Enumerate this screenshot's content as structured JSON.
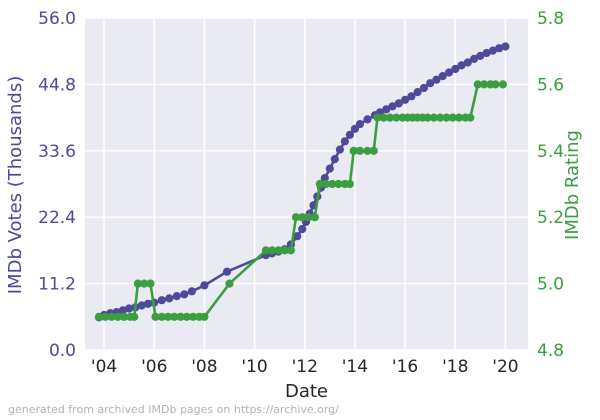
{
  "caption": "generated from archived IMDb pages on https://archive.org/",
  "chart_data": {
    "type": "line",
    "title": "",
    "xlabel": "Date",
    "ylabel_left": "IMDb Votes (Thousands)",
    "ylabel_right": "IMDb Rating",
    "grid": true,
    "legend": "none",
    "plot_background": "#eaeaf2",
    "grid_color": "#ffffff",
    "x_axis": {
      "range": [
        2003.24,
        2020.9
      ],
      "tick_years": [
        2004,
        2006,
        2008,
        2010,
        2012,
        2014,
        2016,
        2018,
        2020
      ],
      "tick_labels": [
        "'04",
        "'06",
        "'08",
        "'10",
        "'12",
        "'14",
        "'16",
        "'18",
        "'20"
      ],
      "tick_color": "#262626"
    },
    "y_axis_left": {
      "range": [
        0,
        56
      ],
      "tick_values": [
        0,
        11.2,
        22.4,
        33.6,
        44.8,
        56
      ],
      "tick_labels": [
        "0.0",
        "11.2",
        "22.4",
        "33.6",
        "44.8",
        "56.0"
      ],
      "tick_color": "#4c4a99"
    },
    "y_axis_right": {
      "range": [
        4.8,
        5.8
      ],
      "tick_values": [
        4.8,
        5.0,
        5.2,
        5.4,
        5.6,
        5.8
      ],
      "tick_labels": [
        "4.8",
        "5.0",
        "5.2",
        "5.4",
        "5.6",
        "5.8"
      ],
      "tick_color": "#3b9e41"
    },
    "series": [
      {
        "name": "imdb-votes-thousands",
        "axis": "left",
        "color": "#4c4a99",
        "points": [
          [
            2003.8,
            5.5
          ],
          [
            2004.0,
            5.9
          ],
          [
            2004.25,
            6.2
          ],
          [
            2004.5,
            6.4
          ],
          [
            2004.75,
            6.7
          ],
          [
            2005.0,
            7.0
          ],
          [
            2005.25,
            7.2
          ],
          [
            2005.5,
            7.5
          ],
          [
            2005.75,
            7.8
          ],
          [
            2006.0,
            8.0
          ],
          [
            2006.3,
            8.4
          ],
          [
            2006.6,
            8.7
          ],
          [
            2006.9,
            9.1
          ],
          [
            2007.2,
            9.4
          ],
          [
            2007.5,
            9.9
          ],
          [
            2008.0,
            10.9
          ],
          [
            2008.9,
            13.2
          ],
          [
            2010.45,
            16.0
          ],
          [
            2010.7,
            16.3
          ],
          [
            2010.95,
            16.6
          ],
          [
            2011.2,
            17.0
          ],
          [
            2011.45,
            17.8
          ],
          [
            2011.7,
            19.2
          ],
          [
            2011.9,
            20.4
          ],
          [
            2012.05,
            21.6
          ],
          [
            2012.2,
            23.0
          ],
          [
            2012.35,
            24.4
          ],
          [
            2012.5,
            25.9
          ],
          [
            2012.65,
            27.4
          ],
          [
            2012.8,
            29.0
          ],
          [
            2013.0,
            30.6
          ],
          [
            2013.2,
            32.2
          ],
          [
            2013.4,
            33.8
          ],
          [
            2013.6,
            35.2
          ],
          [
            2013.8,
            36.3
          ],
          [
            2014.0,
            37.3
          ],
          [
            2014.2,
            38.1
          ],
          [
            2014.5,
            38.9
          ],
          [
            2014.8,
            39.6
          ],
          [
            2015.0,
            40.1
          ],
          [
            2015.25,
            40.6
          ],
          [
            2015.5,
            41.1
          ],
          [
            2015.75,
            41.6
          ],
          [
            2016.0,
            42.2
          ],
          [
            2016.25,
            42.8
          ],
          [
            2016.5,
            43.5
          ],
          [
            2016.75,
            44.2
          ],
          [
            2017.0,
            45.0
          ],
          [
            2017.25,
            45.6
          ],
          [
            2017.5,
            46.2
          ],
          [
            2017.75,
            46.8
          ],
          [
            2018.0,
            47.4
          ],
          [
            2018.25,
            48.0
          ],
          [
            2018.5,
            48.5
          ],
          [
            2018.75,
            49.1
          ],
          [
            2019.0,
            49.6
          ],
          [
            2019.25,
            50.1
          ],
          [
            2019.5,
            50.5
          ],
          [
            2019.75,
            50.9
          ],
          [
            2020.0,
            51.2
          ]
        ]
      },
      {
        "name": "imdb-rating",
        "axis": "right",
        "color": "#3b9e41",
        "points": [
          [
            2003.8,
            4.9
          ],
          [
            2004.05,
            4.9
          ],
          [
            2004.3,
            4.9
          ],
          [
            2004.55,
            4.9
          ],
          [
            2004.8,
            4.9
          ],
          [
            2005.05,
            4.9
          ],
          [
            2005.2,
            4.9
          ],
          [
            2005.35,
            5.0
          ],
          [
            2005.6,
            5.0
          ],
          [
            2005.85,
            5.0
          ],
          [
            2006.05,
            4.9
          ],
          [
            2006.3,
            4.9
          ],
          [
            2006.55,
            4.9
          ],
          [
            2006.8,
            4.9
          ],
          [
            2007.05,
            4.9
          ],
          [
            2007.3,
            4.9
          ],
          [
            2007.55,
            4.9
          ],
          [
            2007.8,
            4.9
          ],
          [
            2008.0,
            4.9
          ],
          [
            2009.0,
            5.0
          ],
          [
            2010.45,
            5.1
          ],
          [
            2010.7,
            5.1
          ],
          [
            2010.95,
            5.1
          ],
          [
            2011.2,
            5.1
          ],
          [
            2011.45,
            5.1
          ],
          [
            2011.65,
            5.2
          ],
          [
            2011.9,
            5.2
          ],
          [
            2012.15,
            5.2
          ],
          [
            2012.4,
            5.2
          ],
          [
            2012.6,
            5.3
          ],
          [
            2012.85,
            5.3
          ],
          [
            2013.1,
            5.3
          ],
          [
            2013.35,
            5.3
          ],
          [
            2013.6,
            5.3
          ],
          [
            2013.8,
            5.3
          ],
          [
            2013.95,
            5.4
          ],
          [
            2014.2,
            5.4
          ],
          [
            2014.5,
            5.4
          ],
          [
            2014.75,
            5.4
          ],
          [
            2014.9,
            5.5
          ],
          [
            2015.15,
            5.5
          ],
          [
            2015.4,
            5.5
          ],
          [
            2015.65,
            5.5
          ],
          [
            2015.9,
            5.5
          ],
          [
            2016.1,
            5.5
          ],
          [
            2016.3,
            5.5
          ],
          [
            2016.5,
            5.5
          ],
          [
            2016.7,
            5.5
          ],
          [
            2016.9,
            5.5
          ],
          [
            2017.15,
            5.5
          ],
          [
            2017.4,
            5.5
          ],
          [
            2017.65,
            5.5
          ],
          [
            2017.9,
            5.5
          ],
          [
            2018.15,
            5.5
          ],
          [
            2018.4,
            5.5
          ],
          [
            2018.6,
            5.5
          ],
          [
            2018.9,
            5.6
          ],
          [
            2019.15,
            5.6
          ],
          [
            2019.4,
            5.6
          ],
          [
            2019.6,
            5.6
          ],
          [
            2019.9,
            5.6
          ]
        ]
      }
    ]
  }
}
